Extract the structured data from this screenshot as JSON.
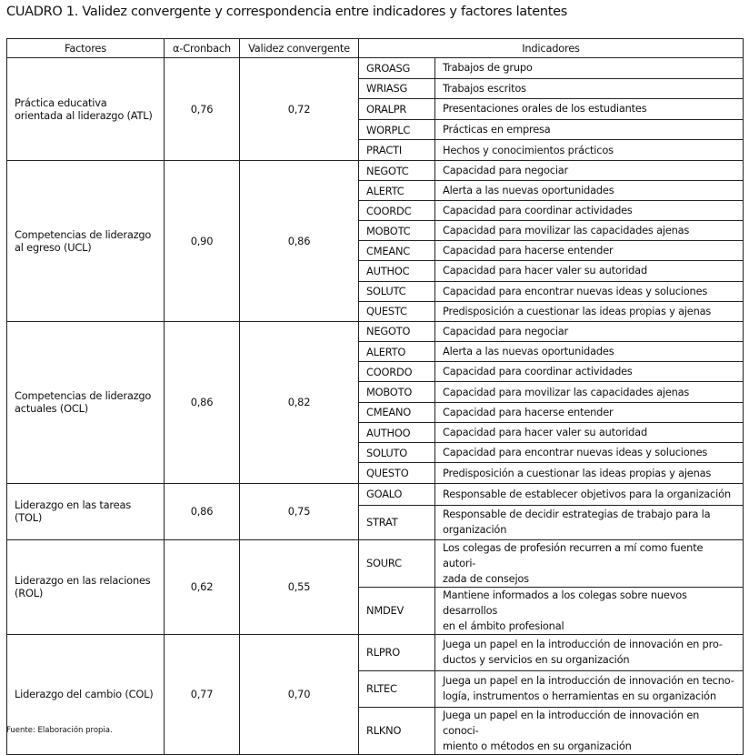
{
  "title": "CUADRO 1. Validez convergente y correspondencia entre indicadores y factores latentes",
  "headers": [
    "Factores",
    "α-Cronbach",
    "Validez convergente",
    "Indicadores"
  ],
  "groups": [
    {
      "factor": "Práctica educativa orientada al liderazgo (ATL)",
      "alpha": "0,76",
      "validity": "0,72",
      "indicators": [
        {
          "code": "GROASG",
          "desc": "Trabajos de grupo"
        },
        {
          "code": "WRIASG",
          "desc": "Trabajos escritos"
        },
        {
          "code": "ORALPR",
          "desc": "Presentaciones orales de los estudiantes"
        },
        {
          "code": "WORPLC",
          "desc": "Prácticas en empresa"
        },
        {
          "code": "PRACTI",
          "desc": "Hechos y conocimientos prácticos"
        }
      ]
    },
    {
      "factor": "Competencias de liderazgo al egreso (UCL)",
      "alpha": "0,90",
      "validity": "0,86",
      "indicators": [
        {
          "code": "NEGOTC",
          "desc": "Capacidad para negociar"
        },
        {
          "code": "ALERTC",
          "desc": "Alerta a las nuevas oportunidades"
        },
        {
          "code": "COORDC",
          "desc": "Capacidad para coordinar actividades"
        },
        {
          "code": "MOBOTC",
          "desc": "Capacidad para movilizar las capacidades ajenas"
        },
        {
          "code": "CMEANC",
          "desc": "Capacidad para hacerse entender"
        },
        {
          "code": "AUTHOC",
          "desc": "Capacidad para hacer valer su autoridad"
        },
        {
          "code": "SOLUTC",
          "desc": "Capacidad para encontrar nuevas ideas y soluciones"
        },
        {
          "code": "QUESTC",
          "desc": "Predisposición a cuestionar las ideas propias y ajenas"
        }
      ]
    },
    {
      "factor": "Competencias de liderazgo actuales (OCL)",
      "alpha": "0,86",
      "validity": "0,82",
      "indicators": [
        {
          "code": "NEGOTO",
          "desc": "Capacidad para negociar"
        },
        {
          "code": "ALERTO",
          "desc": "Alerta a las nuevas oportunidades"
        },
        {
          "code": "COORDO",
          "desc": "Capacidad para coordinar actividades"
        },
        {
          "code": "MOBOTO",
          "desc": "Capacidad para movilizar las capacidades ajenas"
        },
        {
          "code": "CMEANO",
          "desc": "Capacidad para hacerse entender"
        },
        {
          "code": "AUTHOO",
          "desc": "Capacidad para hacer valer su autoridad"
        },
        {
          "code": "SOLUTO",
          "desc": "Capacidad para encontrar nuevas ideas y soluciones"
        },
        {
          "code": "QUESTO",
          "desc": "Predisposición a cuestionar las ideas propias y ajenas"
        }
      ]
    },
    {
      "factor": "Liderazgo en las tareas (TOL)",
      "alpha": "0,86",
      "validity": "0,75",
      "indicators": [
        {
          "code": "GOALO",
          "desc": "Responsable de establecer objetivos para la organización"
        },
        {
          "code": "STRAT",
          "desc": "Responsable de decidir estrategias de trabajo para la\norganización"
        }
      ]
    },
    {
      "factor": "Liderazgo en las relaciones (ROL)",
      "alpha": "0,62",
      "validity": "0,55",
      "indicators": [
        {
          "code": "SOURC",
          "desc": "Los colegas de profesión recurren a mí como fuente autori-\nzada de consejos"
        },
        {
          "code": "NMDEV",
          "desc": "Mantiene informados a los colegas sobre nuevos desarrollos\nen el ámbito profesional"
        }
      ]
    },
    {
      "factor": "Liderazgo del cambio (COL)",
      "alpha": "0,77",
      "validity": "0,70",
      "indicators": [
        {
          "code": "RLPRO",
          "desc": "Juega un papel en la introducción de innovación en pro-\nductos y servicios en su organización"
        },
        {
          "code": "RLTEC",
          "desc": "Juega un papel en la introducción de innovación en tecno-\nlogía, instrumentos o herramientas en su organización"
        },
        {
          "code": "RLKNO",
          "desc": "Juega un papel en la introducción de innovación en conoci-\nmiento o métodos en su organización"
        }
      ]
    }
  ],
  "footer": "Fuente: Elaboración propia."
}
